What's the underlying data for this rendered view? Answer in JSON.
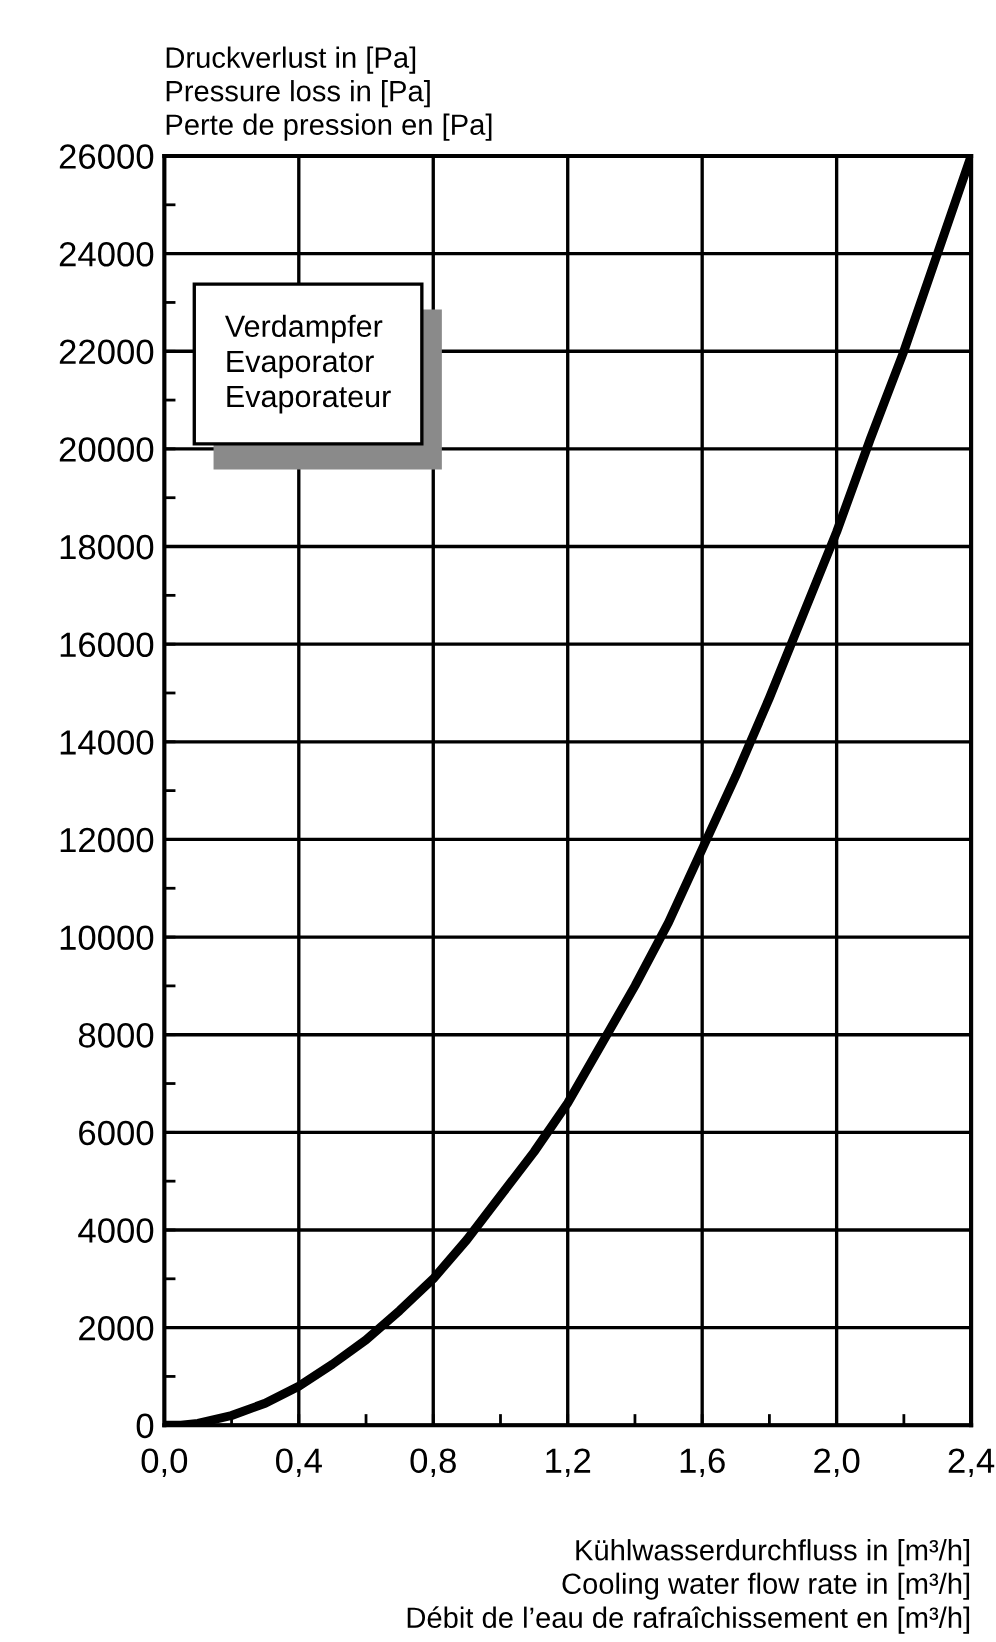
{
  "chart_data": {
    "type": "line",
    "ylabel": "Druckverlust in [Pa]\nPressure loss in [Pa]\nPerte de pression en [Pa]",
    "xlabel": "Kühlwasserdurchfluss in [m³/h]\nCooling water flow rate in [m³/h]\nDébit de l’eau de rafraîchissement en [m³/h]",
    "annotations": [
      "Verdampfer\nEvaporator\nEvaporateur"
    ],
    "x": [
      0,
      0.05,
      0.1,
      0.2,
      0.3,
      0.4,
      0.5,
      0.6,
      0.7,
      0.8,
      0.9,
      1.0,
      1.1,
      1.2,
      1.3,
      1.4,
      1.5,
      1.6,
      1.7,
      1.8,
      1.9,
      2.0,
      2.1,
      2.2,
      2.3,
      2.4
    ],
    "series": [
      {
        "color": "#000000",
        "values": [
          0,
          0,
          40,
          200,
          450,
          800,
          1250,
          1750,
          2350,
          3000,
          3800,
          4700,
          5600,
          6600,
          7800,
          9000,
          10300,
          11800,
          13300,
          14900,
          16600,
          18300,
          20200,
          22000,
          24000,
          26000
        ]
      }
    ],
    "xlim": [
      0,
      2.4
    ],
    "ylim": [
      0,
      26000
    ],
    "xticks": [
      {
        "value": 0,
        "label": "0,0"
      },
      {
        "value": 0.2,
        "label": null
      },
      {
        "value": 0.4,
        "label": "0,4"
      },
      {
        "value": 0.6,
        "label": null
      },
      {
        "value": 0.8,
        "label": "0,8"
      },
      {
        "value": 1.0,
        "label": null
      },
      {
        "value": 1.2,
        "label": "1,2"
      },
      {
        "value": 1.4,
        "label": null
      },
      {
        "value": 1.6,
        "label": "1,6"
      },
      {
        "value": 1.8,
        "label": null
      },
      {
        "value": 2.0,
        "label": "2,0"
      },
      {
        "value": 2.2,
        "label": null
      },
      {
        "value": 2.4,
        "label": "2,4"
      }
    ],
    "yticks": [
      0,
      {
        "value": 1000,
        "label": null
      },
      2000,
      {
        "value": 3000,
        "label": null
      },
      4000,
      {
        "value": 5000,
        "label": null
      },
      6000,
      {
        "value": 7000,
        "label": null
      },
      8000,
      {
        "value": 9000,
        "label": null
      },
      10000,
      {
        "value": 11000,
        "label": null
      },
      12000,
      {
        "value": 13000,
        "label": null
      },
      14000,
      {
        "value": 15000,
        "label": null
      },
      16000,
      {
        "value": 17000,
        "label": null
      },
      18000,
      {
        "value": 19000,
        "label": null
      },
      20000,
      {
        "value": 21000,
        "label": null
      },
      22000,
      {
        "value": 23000,
        "label": null
      },
      24000,
      {
        "value": 25000,
        "label": null
      },
      26000
    ],
    "grid": true,
    "marker": "none",
    "line_style": "solid",
    "legend": false
  }
}
